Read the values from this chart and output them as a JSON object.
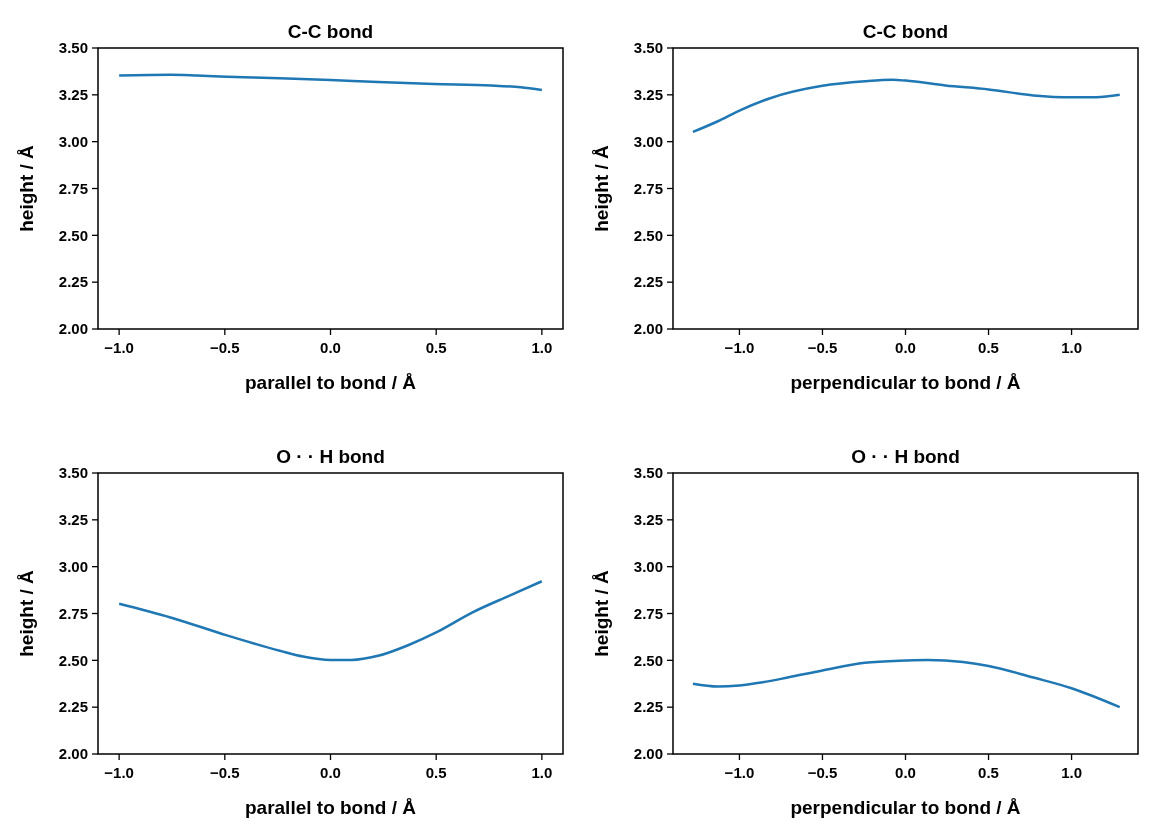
{
  "chart_data": [
    {
      "type": "line",
      "title": "C-C bond",
      "xlabel": "parallel to bond / Å",
      "ylabel": "height / Å",
      "xlim": [
        -1.1,
        1.1
      ],
      "ylim": [
        2,
        3.5
      ],
      "xticks": [
        {
          "value": -1,
          "label": "−1.0"
        },
        {
          "value": -0.5,
          "label": "−0.5"
        },
        {
          "value": 0,
          "label": "0.0"
        },
        {
          "value": 0.5,
          "label": "0.5"
        },
        {
          "value": 1,
          "label": "1.0"
        }
      ],
      "yticks": [
        {
          "value": 2,
          "label": "2.00"
        },
        {
          "value": 2.25,
          "label": "2.25"
        },
        {
          "value": 2.5,
          "label": "2.50"
        },
        {
          "value": 2.75,
          "label": "2.75"
        },
        {
          "value": 3,
          "label": "3.00"
        },
        {
          "value": 3.25,
          "label": "3.25"
        },
        {
          "value": 3.5,
          "label": "3.50"
        }
      ],
      "x": [
        -1,
        -0.757,
        -0.63,
        -0.49,
        -0.24,
        0,
        0.225,
        0.49,
        0.76,
        0.9,
        1
      ],
      "series": [
        {
          "color": "#1f77b4",
          "values": [
            3.353,
            3.357,
            3.353,
            3.347,
            3.339,
            3.329,
            3.318,
            3.308,
            3.3,
            3.29,
            3.276
          ]
        }
      ]
    },
    {
      "type": "line",
      "title": "C-C bond",
      "xlabel": "perpendicular to bond / Å",
      "ylabel": "height / Å",
      "xlim": [
        -1.4,
        1.4
      ],
      "ylim": [
        2,
        3.5
      ],
      "xticks": [
        {
          "value": -1,
          "label": "−1.0"
        },
        {
          "value": -0.5,
          "label": "−0.5"
        },
        {
          "value": 0,
          "label": "0.0"
        },
        {
          "value": 0.5,
          "label": "0.5"
        },
        {
          "value": 1,
          "label": "1.0"
        }
      ],
      "yticks": [
        {
          "value": 2,
          "label": "2.00"
        },
        {
          "value": 2.25,
          "label": "2.25"
        },
        {
          "value": 2.5,
          "label": "2.50"
        },
        {
          "value": 2.75,
          "label": "2.75"
        },
        {
          "value": 3,
          "label": "3.00"
        },
        {
          "value": 3.25,
          "label": "3.25"
        },
        {
          "value": 3.5,
          "label": "3.50"
        }
      ],
      "x": [
        -1.28,
        -1.13,
        -1,
        -0.815,
        -0.5,
        -0.245,
        -0.076,
        0,
        0.24,
        0.5,
        0.77,
        1,
        1.15,
        1.29
      ],
      "series": [
        {
          "color": "#1f77b4",
          "values": [
            3.052,
            3.109,
            3.166,
            3.232,
            3.298,
            3.322,
            3.33,
            3.326,
            3.3,
            3.279,
            3.247,
            3.237,
            3.237,
            3.25
          ]
        }
      ]
    },
    {
      "type": "line",
      "title": "O · · H bond",
      "xlabel": "parallel to bond / Å",
      "ylabel": "height / Å",
      "xlim": [
        -1.1,
        1.1
      ],
      "ylim": [
        2,
        3.5
      ],
      "xticks": [
        {
          "value": -1,
          "label": "−1.0"
        },
        {
          "value": -0.5,
          "label": "−0.5"
        },
        {
          "value": 0,
          "label": "0.0"
        },
        {
          "value": 0.5,
          "label": "0.5"
        },
        {
          "value": 1,
          "label": "1.0"
        }
      ],
      "yticks": [
        {
          "value": 2,
          "label": "2.00"
        },
        {
          "value": 2.25,
          "label": "2.25"
        },
        {
          "value": 2.5,
          "label": "2.50"
        },
        {
          "value": 2.75,
          "label": "2.75"
        },
        {
          "value": 3,
          "label": "3.00"
        },
        {
          "value": 3.25,
          "label": "3.25"
        },
        {
          "value": 3.5,
          "label": "3.50"
        }
      ],
      "x": [
        -1,
        -0.757,
        -0.49,
        -0.24,
        -0.13,
        0,
        0.1,
        0.225,
        0.37,
        0.5,
        0.67,
        0.85,
        1
      ],
      "series": [
        {
          "color": "#1f77b4",
          "values": [
            2.802,
            2.729,
            2.633,
            2.551,
            2.52,
            2.502,
            2.502,
            2.524,
            2.582,
            2.649,
            2.755,
            2.847,
            2.922
          ]
        }
      ]
    },
    {
      "type": "line",
      "title": "O · · H bond",
      "xlabel": "perpendicular to bond / Å",
      "ylabel": "height / Å",
      "xlim": [
        -1.4,
        1.4
      ],
      "ylim": [
        2,
        3.5
      ],
      "xticks": [
        {
          "value": -1,
          "label": "−1.0"
        },
        {
          "value": -0.5,
          "label": "−0.5"
        },
        {
          "value": 0,
          "label": "0.0"
        },
        {
          "value": 0.5,
          "label": "0.5"
        },
        {
          "value": 1,
          "label": "1.0"
        }
      ],
      "yticks": [
        {
          "value": 2,
          "label": "2.00"
        },
        {
          "value": 2.25,
          "label": "2.25"
        },
        {
          "value": 2.5,
          "label": "2.50"
        },
        {
          "value": 2.75,
          "label": "2.75"
        },
        {
          "value": 3,
          "label": "3.00"
        },
        {
          "value": 3.25,
          "label": "3.25"
        },
        {
          "value": 3.5,
          "label": "3.50"
        }
      ],
      "x": [
        -1.28,
        -1.13,
        -1,
        -0.86,
        -0.71,
        -0.5,
        -0.245,
        0,
        0.135,
        0.346,
        0.5,
        0.77,
        1,
        1.29
      ],
      "series": [
        {
          "color": "#1f77b4",
          "values": [
            2.375,
            2.36,
            2.366,
            2.383,
            2.408,
            2.446,
            2.487,
            2.499,
            2.502,
            2.491,
            2.47,
            2.408,
            2.351,
            2.25
          ]
        }
      ]
    }
  ]
}
